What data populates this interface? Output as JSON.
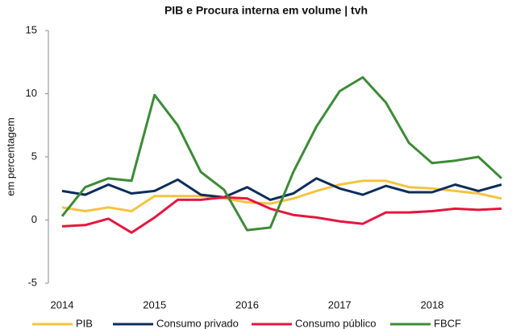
{
  "chart_data": {
    "type": "line",
    "title": "PIB e Procura interna em volume | tvh",
    "y_label": "em percentagem",
    "categories": [
      "2014",
      null,
      null,
      null,
      "2015",
      null,
      null,
      null,
      "2016",
      null,
      null,
      null,
      "2017",
      null,
      null,
      null,
      "2018",
      null,
      null,
      null
    ],
    "series": [
      {
        "name": "PIB",
        "color": "#f5c342",
        "values": [
          1.0,
          0.7,
          1.0,
          0.7,
          1.9,
          1.9,
          1.9,
          1.7,
          1.4,
          1.3,
          1.7,
          2.3,
          2.8,
          3.1,
          3.1,
          2.6,
          2.5,
          2.3,
          2.1,
          1.7
        ]
      },
      {
        "name": "Consumo privado",
        "color": "#0c2d5a",
        "values": [
          2.3,
          2.0,
          2.8,
          2.1,
          2.3,
          3.2,
          2.0,
          1.8,
          2.6,
          1.6,
          2.1,
          3.3,
          2.5,
          2.0,
          2.7,
          2.2,
          2.2,
          2.8,
          2.3,
          2.8
        ]
      },
      {
        "name": "Consumo público",
        "color": "#e3173e",
        "values": [
          -0.5,
          -0.4,
          0.1,
          -1.0,
          0.2,
          1.6,
          1.6,
          1.8,
          1.7,
          0.9,
          0.4,
          0.2,
          -0.1,
          -0.3,
          0.6,
          0.6,
          0.7,
          0.9,
          0.8,
          0.9
        ]
      },
      {
        "name": "FBCF",
        "color": "#3d8b37",
        "values": [
          0.3,
          2.6,
          3.3,
          3.1,
          9.9,
          7.5,
          3.8,
          2.4,
          -0.8,
          -0.6,
          3.8,
          7.4,
          10.2,
          11.3,
          9.3,
          6.1,
          4.5,
          4.7,
          5.0,
          3.3
        ]
      }
    ],
    "ylim": [
      -5,
      15
    ],
    "yticks": [
      -5,
      0,
      5,
      10,
      15
    ],
    "legend": "bottom"
  }
}
